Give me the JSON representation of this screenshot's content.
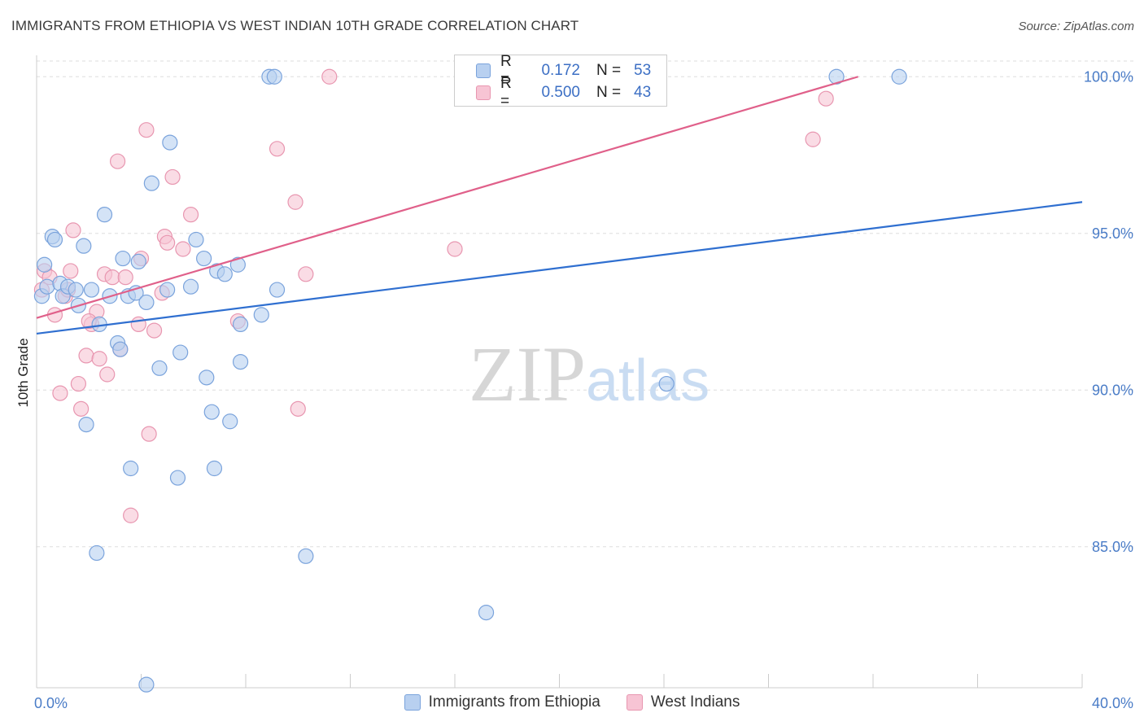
{
  "title": "IMMIGRANTS FROM ETHIOPIA VS WEST INDIAN 10TH GRADE CORRELATION CHART",
  "source": "Source: ZipAtlas.com",
  "watermark": {
    "zip": "ZIP",
    "atlas": "atlas"
  },
  "legend": {
    "r_label": "R =",
    "n_label": "N =",
    "rows": [
      {
        "name": "Immigrants from Ethiopia",
        "r": "0.172",
        "n": "53"
      },
      {
        "name": "West Indians",
        "r": "0.500",
        "n": "43"
      }
    ]
  },
  "colors": {
    "blue_fill": "#b8d0f0",
    "blue_stroke": "#7aa3dc",
    "blue_line": "#2f6fd0",
    "pink_fill": "#f7c4d4",
    "pink_stroke": "#e896b0",
    "pink_line": "#e0608a",
    "tick_text": "#4a7cc7",
    "grid": "#dddddd"
  },
  "chart_data": {
    "type": "scatter",
    "title": "IMMIGRANTS FROM ETHIOPIA VS WEST INDIAN 10TH GRADE CORRELATION CHART",
    "xlabel": "",
    "ylabel": "10th Grade",
    "xlim": [
      0,
      40
    ],
    "ylim": [
      80.5,
      100.5
    ],
    "x_tick_labels": [
      {
        "value": 0,
        "label": "0.0%"
      },
      {
        "value": 40,
        "label": "40.0%"
      }
    ],
    "y_tick_labels": [
      {
        "value": 85,
        "label": "85.0%"
      },
      {
        "value": 90,
        "label": "90.0%"
      },
      {
        "value": 95,
        "label": "95.0%"
      },
      {
        "value": 100,
        "label": "100.0%"
      }
    ],
    "series": [
      {
        "name": "Immigrants from Ethiopia",
        "trend": {
          "x": [
            0,
            40
          ],
          "y": [
            91.8,
            96.0
          ]
        },
        "points": [
          [
            0.2,
            93.0
          ],
          [
            0.3,
            94.0
          ],
          [
            0.4,
            93.3
          ],
          [
            0.6,
            94.9
          ],
          [
            0.7,
            94.8
          ],
          [
            0.9,
            93.4
          ],
          [
            1.0,
            93.0
          ],
          [
            1.2,
            93.3
          ],
          [
            1.6,
            92.7
          ],
          [
            1.8,
            94.6
          ],
          [
            2.1,
            93.2
          ],
          [
            1.9,
            88.9
          ],
          [
            2.4,
            92.1
          ],
          [
            2.6,
            95.6
          ],
          [
            2.8,
            93.0
          ],
          [
            3.1,
            91.5
          ],
          [
            3.2,
            91.3
          ],
          [
            3.3,
            94.2
          ],
          [
            3.5,
            93.0
          ],
          [
            3.6,
            87.5
          ],
          [
            3.8,
            93.1
          ],
          [
            3.9,
            94.1
          ],
          [
            4.2,
            92.8
          ],
          [
            4.4,
            96.6
          ],
          [
            4.7,
            90.7
          ],
          [
            5.0,
            93.2
          ],
          [
            5.1,
            97.9
          ],
          [
            5.4,
            87.2
          ],
          [
            5.5,
            91.2
          ],
          [
            5.9,
            93.3
          ],
          [
            6.1,
            94.8
          ],
          [
            6.4,
            94.2
          ],
          [
            6.5,
            90.4
          ],
          [
            6.7,
            89.3
          ],
          [
            6.8,
            87.5
          ],
          [
            6.9,
            93.8
          ],
          [
            7.2,
            93.7
          ],
          [
            7.4,
            89.0
          ],
          [
            7.7,
            94.0
          ],
          [
            7.8,
            92.1
          ],
          [
            7.8,
            90.9
          ],
          [
            8.6,
            92.4
          ],
          [
            8.9,
            100.0
          ],
          [
            9.1,
            100.0
          ],
          [
            9.2,
            93.2
          ],
          [
            10.3,
            84.7
          ],
          [
            17.2,
            82.9
          ],
          [
            24.1,
            90.2
          ],
          [
            30.6,
            100.0
          ],
          [
            33.0,
            100.0
          ],
          [
            2.3,
            84.8
          ],
          [
            4.2,
            80.6
          ],
          [
            1.5,
            93.2
          ]
        ]
      },
      {
        "name": "West Indians",
        "trend": {
          "x": [
            0,
            40
          ],
          "y": [
            92.3,
            102.1
          ]
        },
        "points": [
          [
            0.2,
            93.2
          ],
          [
            0.3,
            93.8
          ],
          [
            0.5,
            93.6
          ],
          [
            0.7,
            92.4
          ],
          [
            0.9,
            89.9
          ],
          [
            1.1,
            93.0
          ],
          [
            1.3,
            93.8
          ],
          [
            1.4,
            95.1
          ],
          [
            1.6,
            90.2
          ],
          [
            1.7,
            89.4
          ],
          [
            1.9,
            91.1
          ],
          [
            2.1,
            92.1
          ],
          [
            2.3,
            92.5
          ],
          [
            2.4,
            91.0
          ],
          [
            2.6,
            93.7
          ],
          [
            2.7,
            90.5
          ],
          [
            2.9,
            93.6
          ],
          [
            3.1,
            97.3
          ],
          [
            3.2,
            91.3
          ],
          [
            3.4,
            93.6
          ],
          [
            3.6,
            86.0
          ],
          [
            3.9,
            92.1
          ],
          [
            4.0,
            94.2
          ],
          [
            4.2,
            98.3
          ],
          [
            4.3,
            88.6
          ],
          [
            4.5,
            91.9
          ],
          [
            4.8,
            93.1
          ],
          [
            4.9,
            94.9
          ],
          [
            5.0,
            94.7
          ],
          [
            5.2,
            96.8
          ],
          [
            5.6,
            94.5
          ],
          [
            5.9,
            95.6
          ],
          [
            7.7,
            92.2
          ],
          [
            9.2,
            97.7
          ],
          [
            9.9,
            96.0
          ],
          [
            10.0,
            89.4
          ],
          [
            10.3,
            93.7
          ],
          [
            11.2,
            100.0
          ],
          [
            16.0,
            94.5
          ],
          [
            29.7,
            98.0
          ],
          [
            30.2,
            99.3
          ],
          [
            1.2,
            93.2
          ],
          [
            2.0,
            92.2
          ]
        ]
      }
    ]
  }
}
